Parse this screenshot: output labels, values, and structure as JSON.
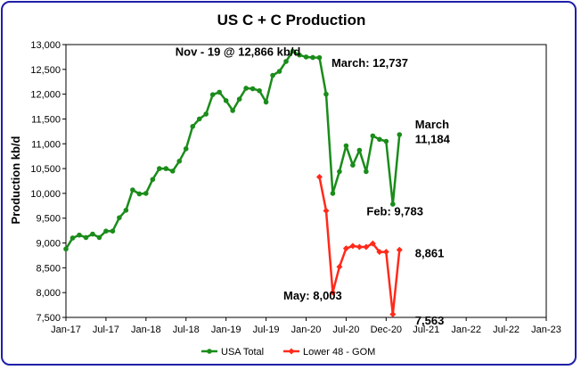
{
  "chart_data": {
    "type": "line",
    "title": "US C + C Production",
    "ylabel": "Production kb/d",
    "xlabel": "",
    "ylim": [
      7500,
      13000
    ],
    "y_ticks": [
      "7,500",
      "8,000",
      "8,500",
      "9,000",
      "9,500",
      "10,000",
      "10,500",
      "11,000",
      "11,500",
      "12,000",
      "12,500",
      "13,000"
    ],
    "x_ticks": [
      "Jan-17",
      "Jul-17",
      "Jan-18",
      "Jul-18",
      "Jan-19",
      "Jul-19",
      "Jan-20",
      "Jul-20",
      "Dec-20",
      "Jul-21",
      "Jan-22",
      "Jul-22",
      "Jan-23"
    ],
    "grid": false,
    "legend_position": "bottom",
    "series": [
      {
        "name": "USA Total",
        "color": "#1a8c1a",
        "marker": "circle",
        "points": [
          {
            "x": "2017-01",
            "y": 8880
          },
          {
            "x": "2017-02",
            "y": 9100
          },
          {
            "x": "2017-03",
            "y": 9160
          },
          {
            "x": "2017-04",
            "y": 9110
          },
          {
            "x": "2017-05",
            "y": 9180
          },
          {
            "x": "2017-06",
            "y": 9110
          },
          {
            "x": "2017-07",
            "y": 9240
          },
          {
            "x": "2017-08",
            "y": 9240
          },
          {
            "x": "2017-09",
            "y": 9510
          },
          {
            "x": "2017-10",
            "y": 9660
          },
          {
            "x": "2017-11",
            "y": 10070
          },
          {
            "x": "2017-12",
            "y": 9990
          },
          {
            "x": "2018-01",
            "y": 10000
          },
          {
            "x": "2018-02",
            "y": 10280
          },
          {
            "x": "2018-03",
            "y": 10500
          },
          {
            "x": "2018-04",
            "y": 10500
          },
          {
            "x": "2018-05",
            "y": 10450
          },
          {
            "x": "2018-06",
            "y": 10650
          },
          {
            "x": "2018-07",
            "y": 10900
          },
          {
            "x": "2018-08",
            "y": 11350
          },
          {
            "x": "2018-09",
            "y": 11500
          },
          {
            "x": "2018-10",
            "y": 11600
          },
          {
            "x": "2018-11",
            "y": 11990
          },
          {
            "x": "2018-12",
            "y": 12040
          },
          {
            "x": "2019-01",
            "y": 11870
          },
          {
            "x": "2019-02",
            "y": 11670
          },
          {
            "x": "2019-03",
            "y": 11900
          },
          {
            "x": "2019-04",
            "y": 12120
          },
          {
            "x": "2019-05",
            "y": 12110
          },
          {
            "x": "2019-06",
            "y": 12070
          },
          {
            "x": "2019-07",
            "y": 11840
          },
          {
            "x": "2019-08",
            "y": 12380
          },
          {
            "x": "2019-09",
            "y": 12460
          },
          {
            "x": "2019-10",
            "y": 12660
          },
          {
            "x": "2019-11",
            "y": 12866
          },
          {
            "x": "2019-12",
            "y": 12790
          },
          {
            "x": "2020-01",
            "y": 12750
          },
          {
            "x": "2020-02",
            "y": 12740
          },
          {
            "x": "2020-03",
            "y": 12737
          },
          {
            "x": "2020-04",
            "y": 12000
          },
          {
            "x": "2020-05",
            "y": 10000
          },
          {
            "x": "2020-06",
            "y": 10440
          },
          {
            "x": "2020-07",
            "y": 10960
          },
          {
            "x": "2020-08",
            "y": 10570
          },
          {
            "x": "2020-09",
            "y": 10870
          },
          {
            "x": "2020-10",
            "y": 10440
          },
          {
            "x": "2020-11",
            "y": 11160
          },
          {
            "x": "2020-12",
            "y": 11090
          },
          {
            "x": "2021-01",
            "y": 11050
          },
          {
            "x": "2021-02",
            "y": 9783
          },
          {
            "x": "2021-03",
            "y": 11184
          }
        ]
      },
      {
        "name": "Lower 48 - GOM",
        "color": "#ff2a1a",
        "marker": "diamond",
        "points": [
          {
            "x": "2020-03",
            "y": 10330
          },
          {
            "x": "2020-04",
            "y": 9650
          },
          {
            "x": "2020-05",
            "y": 8003
          },
          {
            "x": "2020-06",
            "y": 8520
          },
          {
            "x": "2020-07",
            "y": 8890
          },
          {
            "x": "2020-08",
            "y": 8940
          },
          {
            "x": "2020-09",
            "y": 8920
          },
          {
            "x": "2020-10",
            "y": 8920
          },
          {
            "x": "2020-11",
            "y": 8990
          },
          {
            "x": "2020-12",
            "y": 8820
          },
          {
            "x": "2021-01",
            "y": 8820
          },
          {
            "x": "2021-02",
            "y": 7563
          },
          {
            "x": "2021-03",
            "y": 8861
          }
        ]
      }
    ],
    "annotations": [
      {
        "text": "Nov - 19 @ 12,866 kb/d",
        "x": "2018-07",
        "y": 12866
      },
      {
        "text": "March: 12,737",
        "x": "2020-04",
        "y": 12640
      },
      {
        "text": "March",
        "x": "2021-04",
        "y": 11400
      },
      {
        "text": "11,184",
        "x": "2021-04",
        "y": 11100
      },
      {
        "text": "Feb: 9,783",
        "x": "2020-09",
        "y": 9650
      },
      {
        "text": "8,861",
        "x": "2021-04",
        "y": 8800
      },
      {
        "text": "May: 8,003",
        "x": "2019-12",
        "y": 7950
      },
      {
        "text": "7,563",
        "x": "2021-04",
        "y": 7450
      }
    ]
  }
}
